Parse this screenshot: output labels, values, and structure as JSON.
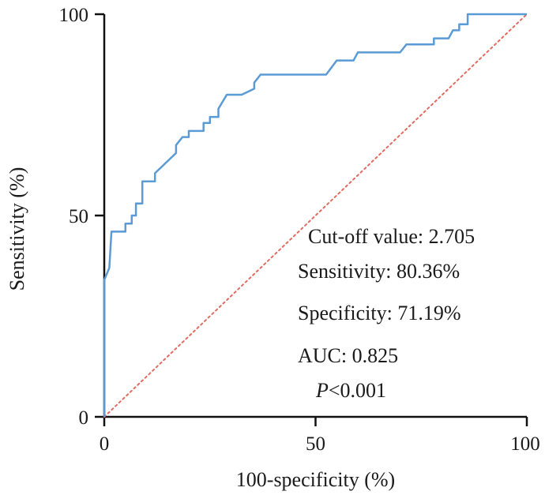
{
  "chart_data": {
    "type": "line",
    "title": "",
    "xlabel": "100-specificity (%)",
    "ylabel": "Sensitivity (%)",
    "xlim": [
      0,
      100
    ],
    "ylim": [
      0,
      100
    ],
    "x_ticks": [
      "0",
      "50",
      "100"
    ],
    "y_ticks": [
      "0",
      "50",
      "100"
    ],
    "grid": false,
    "series": [
      {
        "color": "#5b9bd5",
        "style": "step",
        "points": [
          [
            0,
            0
          ],
          [
            0,
            34
          ],
          [
            1.2,
            37
          ],
          [
            1.7,
            46
          ],
          [
            5,
            46
          ],
          [
            5,
            48
          ],
          [
            6.5,
            48
          ],
          [
            6.5,
            50
          ],
          [
            7.5,
            50
          ],
          [
            7.5,
            53
          ],
          [
            9,
            53
          ],
          [
            9,
            58.5
          ],
          [
            12,
            58.5
          ],
          [
            12,
            60.5
          ],
          [
            17,
            65.5
          ],
          [
            17,
            67.5
          ],
          [
            18.5,
            69.5
          ],
          [
            20,
            69.5
          ],
          [
            20,
            71
          ],
          [
            23.5,
            71
          ],
          [
            23.5,
            73
          ],
          [
            25,
            73
          ],
          [
            25,
            74.5
          ],
          [
            27,
            74.5
          ],
          [
            27,
            76.5
          ],
          [
            29,
            80
          ],
          [
            32.5,
            80
          ],
          [
            35.5,
            81.5
          ],
          [
            35.5,
            83
          ],
          [
            37,
            85
          ],
          [
            52.5,
            85
          ],
          [
            55,
            88.5
          ],
          [
            59,
            88.5
          ],
          [
            60,
            90.5
          ],
          [
            70,
            90.5
          ],
          [
            71.5,
            92.5
          ],
          [
            78,
            92.5
          ],
          [
            78,
            94
          ],
          [
            81.5,
            94
          ],
          [
            82.5,
            96
          ],
          [
            84,
            96
          ],
          [
            84,
            97.5
          ],
          [
            86,
            97.5
          ],
          [
            86,
            100
          ],
          [
            100,
            100
          ]
        ]
      },
      {
        "color": "#e06b5f",
        "style": "dotted",
        "points": [
          [
            0,
            0
          ],
          [
            100,
            100
          ]
        ]
      }
    ],
    "annotations": [
      "Cut-off value: 2.705",
      "Sensitivity: 80.36%",
      "Specificity: 71.19%",
      "AUC: 0.825"
    ],
    "p_value": {
      "symbol": "P",
      "text": "<0.001"
    }
  }
}
